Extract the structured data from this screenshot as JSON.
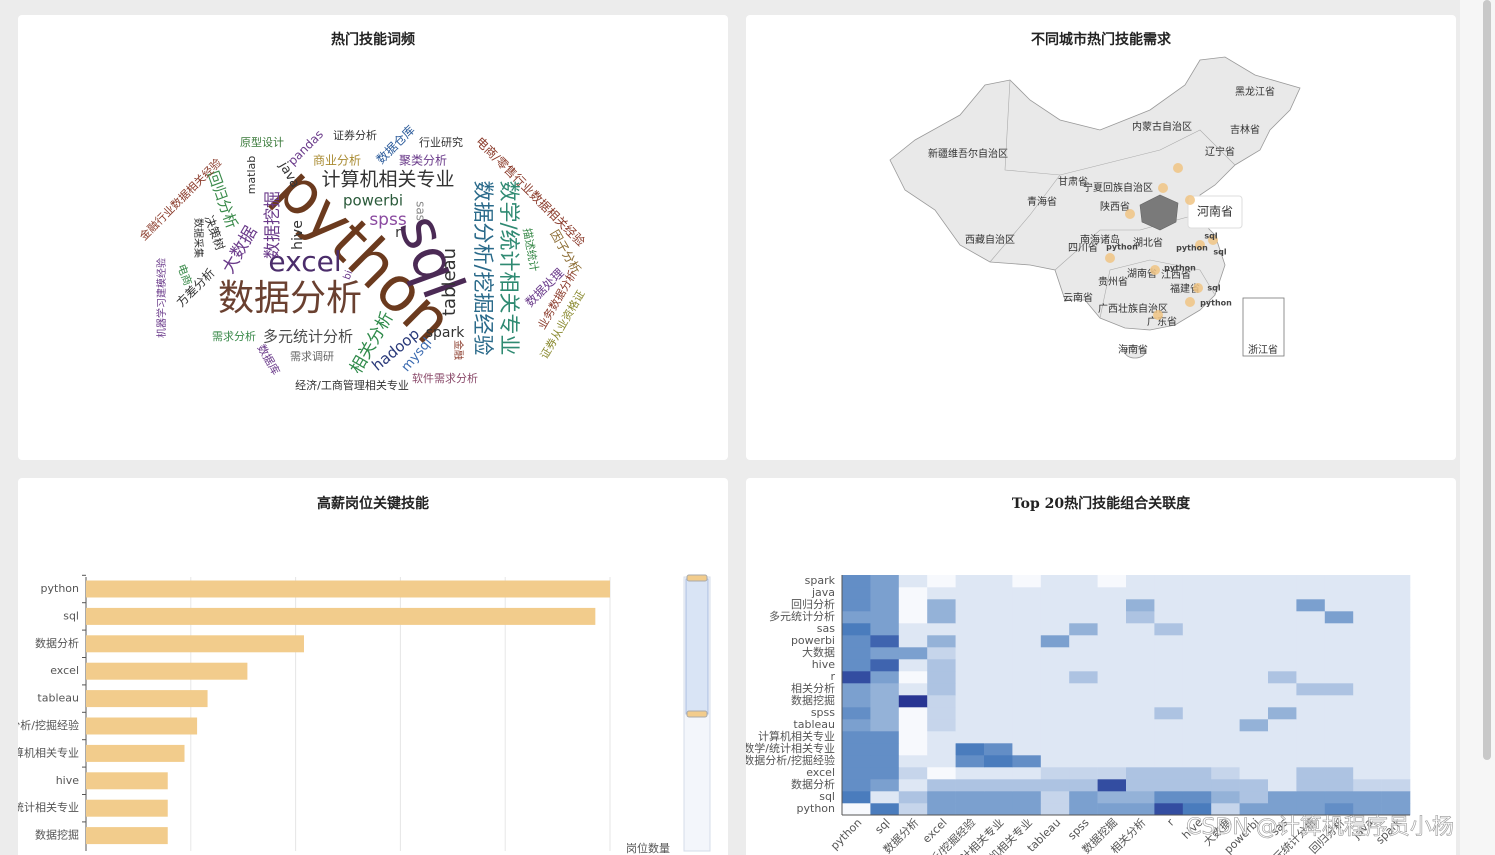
{
  "watermark": "CSDN @计算机程序员小杨",
  "chart_data": [
    {
      "type": "wordcloud",
      "title": "热门技能词频",
      "words": [
        {
          "text": "python",
          "weight": 62,
          "color": "#6b3a1e"
        },
        {
          "text": "sql",
          "weight": 58,
          "color": "#4b2a55"
        },
        {
          "text": "数据分析",
          "weight": 36,
          "color": "#6a4030"
        },
        {
          "text": "excel",
          "weight": 28,
          "color": "#4b2d6b"
        },
        {
          "text": "数学/统计相关专业",
          "weight": 21,
          "color": "#2f8a72"
        },
        {
          "text": "数据分析/挖掘经验",
          "weight": 21,
          "color": "#2a6a8a"
        },
        {
          "text": "计算机相关专业",
          "weight": 19,
          "color": "#333333"
        },
        {
          "text": "多元统计分析",
          "weight": 15,
          "color": "#4a4a4a"
        },
        {
          "text": "tableau",
          "weight": 18,
          "color": "#333333"
        },
        {
          "text": "相关分析",
          "weight": 17,
          "color": "#2f8a4a"
        },
        {
          "text": "hadoop",
          "weight": 15,
          "color": "#2a3a7a"
        },
        {
          "text": "spark",
          "weight": 14,
          "color": "#333333"
        },
        {
          "text": "mysql",
          "weight": 13,
          "color": "#3a6ab0"
        },
        {
          "text": "powerbi",
          "weight": 15,
          "color": "#2a5a3a"
        },
        {
          "text": "spss",
          "weight": 17,
          "color": "#8a4aa0"
        },
        {
          "text": "hive",
          "weight": 14,
          "color": "#333333"
        },
        {
          "text": "数据挖掘",
          "weight": 17,
          "color": "#6a3a8a"
        },
        {
          "text": "回归分析",
          "weight": 15,
          "color": "#3a8a4a"
        },
        {
          "text": "大数据",
          "weight": 17,
          "color": "#6a3a8a"
        },
        {
          "text": "方差分析",
          "weight": 12,
          "color": "#333333"
        },
        {
          "text": "电商",
          "weight": 11,
          "color": "#3a8a4a"
        },
        {
          "text": "决策树",
          "weight": 12,
          "color": "#333333"
        },
        {
          "text": "数据采集",
          "weight": 10,
          "color": "#333333"
        },
        {
          "text": "金融行业数据相关经验",
          "weight": 11,
          "color": "#8a3a2a"
        },
        {
          "text": "机器学习建模经验",
          "weight": 10,
          "color": "#6a3a8a"
        },
        {
          "text": "原型设计",
          "weight": 11,
          "color": "#3a7a3a"
        },
        {
          "text": "matlab",
          "weight": 11,
          "color": "#333333"
        },
        {
          "text": "pandas",
          "weight": 12,
          "color": "#6a3a8a"
        },
        {
          "text": "java",
          "weight": 13,
          "color": "#333333"
        },
        {
          "text": "商业分析",
          "weight": 12,
          "color": "#a88a30"
        },
        {
          "text": "证券分析",
          "weight": 11,
          "color": "#333333"
        },
        {
          "text": "数据仓库",
          "weight": 12,
          "color": "#2a5a9a"
        },
        {
          "text": "聚类分析",
          "weight": 12,
          "color": "#6a3a8a"
        },
        {
          "text": "行业研究",
          "weight": 11,
          "color": "#333333"
        },
        {
          "text": "电商/零售行业数据相关经验",
          "weight": 12,
          "color": "#8a3a2a"
        },
        {
          "text": "描述统计",
          "weight": 11,
          "color": "#3a8a4a"
        },
        {
          "text": "因子分析",
          "weight": 12,
          "color": "#8a6a30"
        },
        {
          "text": "数据处理",
          "weight": 12,
          "color": "#6a3a8a"
        },
        {
          "text": "业务数据分析",
          "weight": 11,
          "color": "#8a3a2a"
        },
        {
          "text": "证券从业资格证",
          "weight": 11,
          "color": "#8a8a30"
        },
        {
          "text": "软件需求分析",
          "weight": 11,
          "color": "#8a4a6a"
        },
        {
          "text": "经济/工商管理相关专业",
          "weight": 11,
          "color": "#333333"
        },
        {
          "text": "需求调研",
          "weight": 11,
          "color": "#666666"
        },
        {
          "text": "需求分析",
          "weight": 11,
          "color": "#3a8a4a"
        },
        {
          "text": "数据库",
          "weight": 11,
          "color": "#6a3a8a"
        },
        {
          "text": "金融",
          "weight": 10,
          "color": "#8a3a2a"
        },
        {
          "text": "sas",
          "weight": 12,
          "color": "#888888"
        },
        {
          "text": "r",
          "weight": 14,
          "color": "#333333"
        },
        {
          "text": "bi",
          "weight": 10,
          "color": "#6a3a8a"
        }
      ]
    },
    {
      "type": "map",
      "title": "不同城市热门技能需求",
      "regions": [
        "黑龙江省",
        "吉林省",
        "辽宁省",
        "内蒙古自治区",
        "新疆维吾尔自治区",
        "甘肃省",
        "宁夏回族自治区",
        "青海省",
        "陕西省",
        "西藏自治区",
        "四川省",
        "湖北省",
        "贵州省",
        "湖南省",
        "江西省",
        "云南省",
        "广西壮族自治区",
        "福建省",
        "广东省",
        "海南省",
        "浙江省",
        "南海诸岛"
      ],
      "markers": [
        "python",
        "python",
        "python",
        "python",
        "sql",
        "sql",
        "sql"
      ],
      "tooltip": "河南省",
      "region_color": "#e9e9e9",
      "highlight_color": "#7a7a7a",
      "marker_color": "#f0c484"
    },
    {
      "type": "bar",
      "title": "高薪岗位关键技能",
      "categories": [
        "python",
        "sql",
        "数据分析",
        "excel",
        "tableau",
        "数据分析/挖掘经验",
        "计算机相关专业",
        "hive",
        "数学/统计相关专业",
        "数据挖掘"
      ],
      "values": [
        250,
        243,
        104,
        77,
        58,
        53,
        47,
        39,
        39,
        39
      ],
      "color": "#f2cc8c",
      "xlabel": "岗位数量",
      "xlim": [
        0,
        250
      ],
      "xticks": [
        0,
        50,
        100,
        150,
        200,
        250
      ],
      "grid": true
    },
    {
      "type": "heatmap",
      "title": "Top 20热门技能组合关联度",
      "categories": [
        "python",
        "sql",
        "数据分析",
        "excel",
        "数据分析/挖掘经验",
        "数学/统计相关专业",
        "计算机相关专业",
        "tableau",
        "spss",
        "数据挖掘",
        "相关分析",
        "r",
        "hive",
        "大数据",
        "powerbi",
        "sas",
        "多元统计分析",
        "回归分析",
        "java",
        "spark"
      ],
      "color_low": "#f7f9fd",
      "color_mid": "#4a7cbd",
      "color_high": "#283593",
      "values": [
        [
          0,
          7,
          2,
          5,
          5,
          5,
          5,
          2,
          5,
          5,
          5,
          9,
          7,
          2,
          5,
          5,
          5,
          6,
          5,
          5
        ],
        [
          7,
          1,
          3,
          5,
          5,
          5,
          5,
          2,
          5,
          4,
          4,
          6,
          6,
          4,
          3,
          5,
          5,
          5,
          5,
          5
        ],
        [
          6,
          5,
          1,
          3,
          3,
          3,
          3,
          3,
          3,
          9,
          3,
          3,
          3,
          3,
          3,
          1,
          3,
          3,
          2,
          2
        ],
        [
          6,
          6,
          2,
          0,
          1,
          1,
          1,
          2,
          2,
          2,
          3,
          3,
          3,
          2,
          1,
          1,
          3,
          3,
          1,
          1
        ],
        [
          6,
          6,
          1,
          1,
          6,
          7,
          6,
          1,
          1,
          1,
          1,
          1,
          1,
          1,
          1,
          1,
          1,
          1,
          1,
          1
        ],
        [
          6,
          6,
          0,
          1,
          7,
          6,
          1,
          1,
          1,
          1,
          1,
          1,
          1,
          1,
          1,
          1,
          1,
          1,
          1,
          1
        ],
        [
          6,
          6,
          0,
          1,
          1,
          1,
          1,
          1,
          1,
          1,
          1,
          1,
          1,
          1,
          1,
          1,
          1,
          1,
          1,
          1
        ],
        [
          5,
          4,
          0,
          2,
          1,
          1,
          1,
          1,
          1,
          1,
          1,
          1,
          1,
          1,
          4,
          1,
          1,
          1,
          1,
          1
        ],
        [
          6,
          4,
          0,
          2,
          1,
          1,
          1,
          1,
          1,
          1,
          1,
          3,
          1,
          1,
          1,
          4,
          1,
          1,
          1,
          1
        ],
        [
          5,
          4,
          10,
          2,
          1,
          1,
          1,
          1,
          1,
          1,
          1,
          1,
          1,
          1,
          1,
          1,
          1,
          1,
          1,
          1
        ],
        [
          5,
          4,
          1,
          3,
          1,
          1,
          1,
          1,
          1,
          1,
          1,
          1,
          1,
          1,
          1,
          1,
          3,
          3,
          1,
          1
        ],
        [
          9,
          5,
          0,
          3,
          1,
          1,
          1,
          1,
          3,
          1,
          1,
          1,
          1,
          1,
          1,
          3,
          1,
          1,
          1,
          1
        ],
        [
          6,
          8,
          1,
          3,
          1,
          1,
          1,
          1,
          1,
          1,
          1,
          1,
          1,
          1,
          1,
          1,
          1,
          1,
          1,
          1
        ],
        [
          6,
          5,
          5,
          2,
          1,
          1,
          1,
          1,
          1,
          1,
          1,
          1,
          1,
          1,
          1,
          1,
          1,
          1,
          1,
          1
        ],
        [
          6,
          8,
          1,
          4,
          1,
          1,
          1,
          5,
          1,
          1,
          1,
          1,
          1,
          1,
          1,
          1,
          1,
          1,
          1,
          1
        ],
        [
          7,
          5,
          1,
          1,
          1,
          1,
          1,
          1,
          4,
          1,
          1,
          3,
          1,
          1,
          1,
          1,
          1,
          1,
          1,
          1
        ],
        [
          5,
          5,
          0,
          4,
          1,
          1,
          1,
          1,
          1,
          1,
          3,
          1,
          1,
          1,
          1,
          1,
          1,
          5,
          1,
          1
        ],
        [
          6,
          5,
          0,
          4,
          1,
          1,
          1,
          1,
          1,
          1,
          4,
          1,
          1,
          1,
          1,
          1,
          5,
          1,
          1,
          1
        ],
        [
          6,
          5,
          0,
          1,
          1,
          1,
          1,
          1,
          1,
          1,
          1,
          1,
          1,
          1,
          1,
          1,
          1,
          1,
          1,
          1
        ],
        [
          6,
          5,
          1,
          0,
          1,
          1,
          0,
          1,
          1,
          0,
          1,
          1,
          1,
          1,
          1,
          1,
          1,
          1,
          1,
          1
        ]
      ]
    }
  ]
}
